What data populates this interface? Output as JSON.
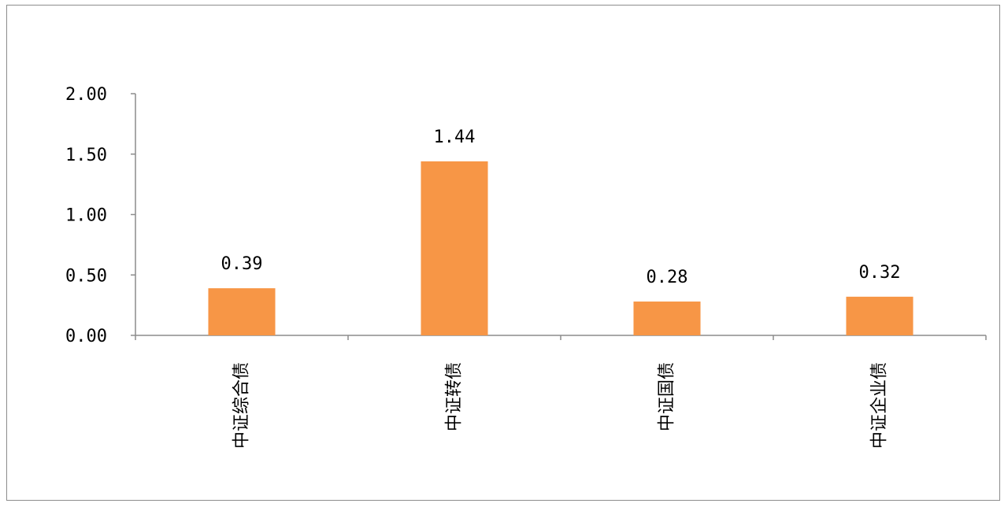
{
  "chart_data": {
    "type": "bar",
    "categories": [
      "中证综合债",
      "中证转债",
      "中证国债",
      "中证企业债"
    ],
    "values": [
      0.39,
      1.44,
      0.28,
      0.32
    ],
    "value_labels": [
      "0.39",
      "1.44",
      "0.28",
      "0.32"
    ],
    "ylim": [
      0,
      2.0
    ],
    "yticks": [
      0.0,
      0.5,
      1.0,
      1.5,
      2.0
    ],
    "ytick_labels": [
      "0.00",
      "0.50",
      "1.00",
      "1.50",
      "2.00"
    ],
    "grid": false,
    "legend": "none",
    "bar_color": "#F79646",
    "axis_color": "#8c8c8c",
    "frame_color": "#8c8c8c"
  }
}
